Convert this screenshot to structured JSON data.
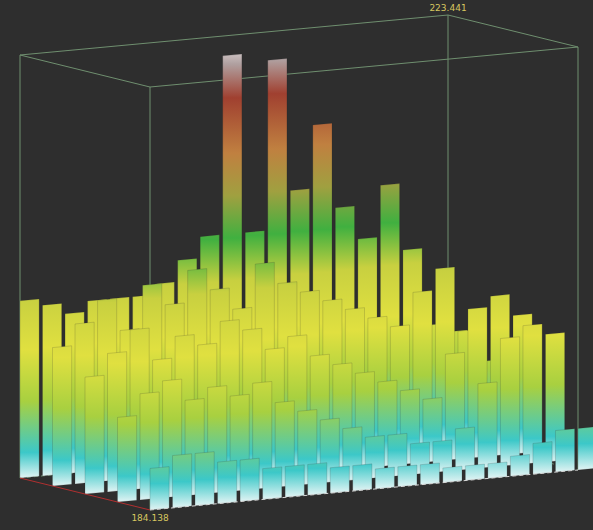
{
  "chart_data": {
    "type": "point_cloud",
    "zlim": [
      184.138,
      223.441
    ],
    "zticks": [
      184.138,
      223.441
    ],
    "heights": [
      [
        200.6,
        200,
        199,
        200,
        200,
        200,
        201,
        203,
        205,
        221.6,
        205,
        220.8,
        208.5,
        214.4,
        206.5,
        203.4,
        208.2,
        202,
        194.8,
        194
      ],
      [
        197,
        199,
        201,
        198,
        202,
        200,
        203,
        201,
        199,
        203,
        201,
        200,
        199,
        198,
        197,
        196,
        199,
        201,
        195,
        192
      ],
      [
        195,
        197,
        199,
        196,
        198,
        197,
        199,
        198,
        196,
        197,
        195,
        194,
        193,
        192,
        191,
        190,
        194,
        198,
        199,
        197
      ],
      [
        192,
        194,
        195,
        193,
        194,
        193,
        194,
        192,
        191,
        190,
        189,
        188,
        188,
        187,
        187,
        188,
        192,
        196,
        197,
        196
      ],
      [
        188,
        189,
        189,
        188,
        188,
        187,
        187,
        187,
        186.5,
        186.5,
        186,
        186,
        186,
        185.5,
        185.5,
        185.5,
        186,
        187,
        188,
        188
      ]
    ]
  }
}
